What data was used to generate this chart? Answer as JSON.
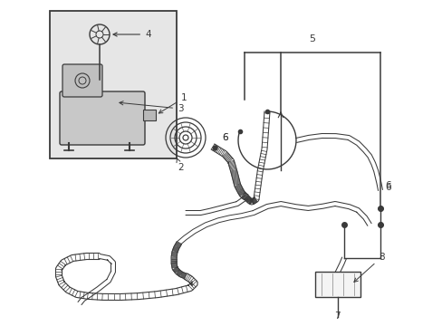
{
  "bg_color": "#ffffff",
  "line_color": "#3a3a3a",
  "label_color": "#000000",
  "inset_bg": "#e8e8e8",
  "fig_width": 4.89,
  "fig_height": 3.6,
  "dpi": 100,
  "xlim": [
    0,
    489
  ],
  "ylim": [
    0,
    360
  ]
}
